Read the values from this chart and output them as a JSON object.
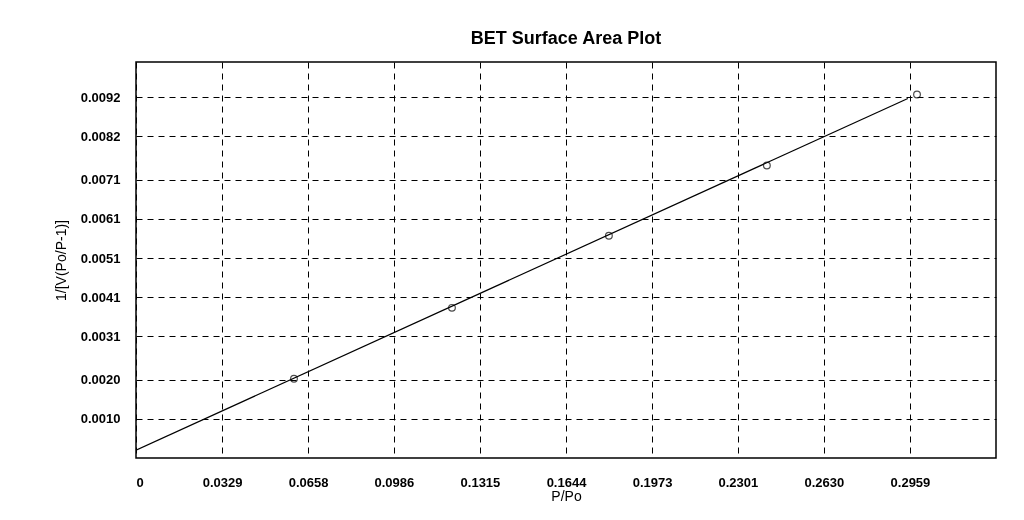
{
  "chart_data": {
    "type": "scatter",
    "title": "BET Surface Area Plot",
    "xlabel": "P/Po",
    "ylabel": "1/[V(Po/P-1)]",
    "xlim": [
      0,
      0.3288
    ],
    "ylim": [
      0,
      0.0101
    ],
    "xticks": [
      0,
      0.0329,
      0.0658,
      0.0986,
      0.1315,
      0.1644,
      0.1973,
      0.2301,
      {
        "value": 0.263,
        "label": "0.2630"
      },
      0.2959
    ],
    "yticks": [
      {
        "value": 0.001,
        "label": "0.0010"
      },
      {
        "value": 0.002,
        "label": "0.0020"
      },
      0.0031,
      0.0041,
      0.0051,
      0.0061,
      0.0071,
      0.0082,
      0.0092
    ],
    "grid": true,
    "series": [
      {
        "marker": "circle",
        "color": "#000000",
        "x": [
          0.0604,
          0.1208,
          0.1808,
          0.2412,
          0.2986
        ],
        "values": [
          0.00202,
          0.00383,
          0.00567,
          0.00746,
          0.00927
        ]
      },
      {
        "type": "line",
        "color": "#000000",
        "x": [
          0,
          0.2951
        ],
        "values": [
          0.0002,
          0.00917
        ]
      }
    ]
  }
}
